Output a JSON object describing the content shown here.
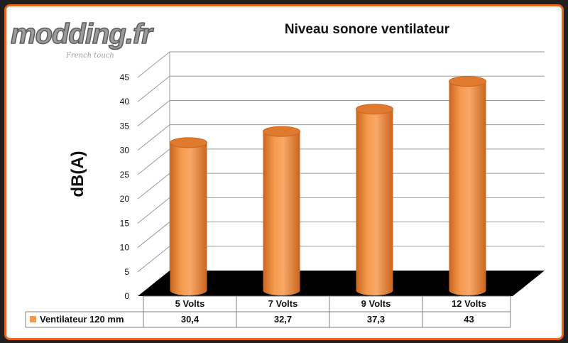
{
  "logo": {
    "text": "modding.fr",
    "tagline": "French touch"
  },
  "chart_data": {
    "type": "bar",
    "title": "Niveau sonore ventilateur",
    "ylabel": "dB(A)",
    "xlabel": "",
    "categories": [
      "5 Volts",
      "7 Volts",
      "9 Volts",
      "12 Volts"
    ],
    "series": [
      {
        "name": "Ventilateur 120 mm",
        "values": [
          30.4,
          32.7,
          37.3,
          43
        ]
      }
    ],
    "value_labels": [
      "30,4",
      "32,7",
      "37,3",
      "43"
    ],
    "ylim": [
      0,
      45
    ],
    "yticks": [
      0,
      5,
      10,
      15,
      20,
      25,
      30,
      35,
      40,
      45
    ],
    "grid": true,
    "legend": "data-table",
    "colors": {
      "bar": "#f59a4d",
      "bar_dark": "#c9651f",
      "floor": "#000000",
      "frame": "#e8641c"
    }
  }
}
